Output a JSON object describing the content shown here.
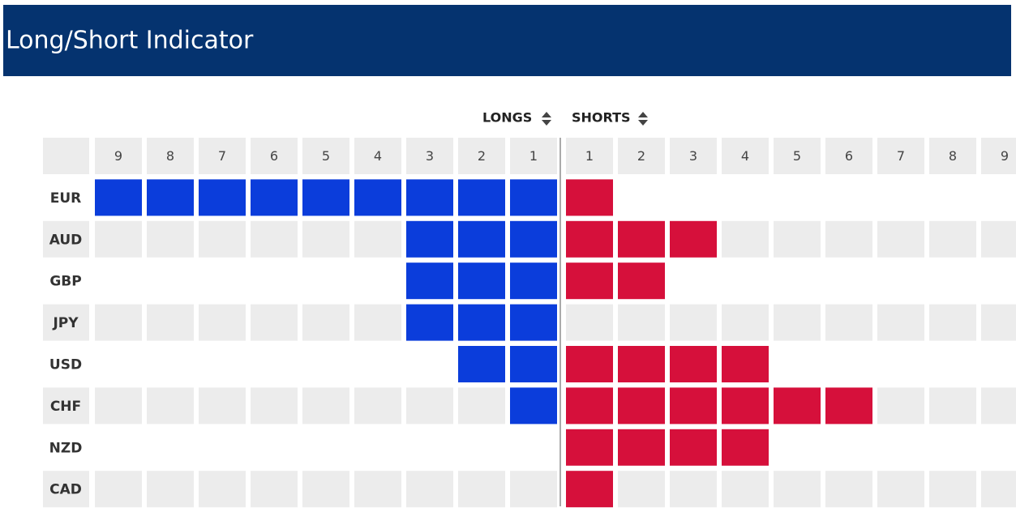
{
  "header": {
    "title": "Long/Short Indicator"
  },
  "table": {
    "longs_label": "LONGS",
    "shorts_label": "SHORTS",
    "long_levels": [
      9,
      8,
      7,
      6,
      5,
      4,
      3,
      2,
      1
    ],
    "short_levels": [
      1,
      2,
      3,
      4,
      5,
      6,
      7,
      8,
      9
    ],
    "long_color": "#0b3ddb",
    "short_color": "#d6103b",
    "rows": [
      {
        "label": "EUR",
        "longs": 9,
        "shorts": 1
      },
      {
        "label": "AUD",
        "longs": 3,
        "shorts": 3
      },
      {
        "label": "GBP",
        "longs": 3,
        "shorts": 2
      },
      {
        "label": "JPY",
        "longs": 3,
        "shorts": 0
      },
      {
        "label": "USD",
        "longs": 2,
        "shorts": 4
      },
      {
        "label": "CHF",
        "longs": 1,
        "shorts": 6
      },
      {
        "label": "NZD",
        "longs": 0,
        "shorts": 4
      },
      {
        "label": "CAD",
        "longs": 0,
        "shorts": 1
      }
    ]
  }
}
